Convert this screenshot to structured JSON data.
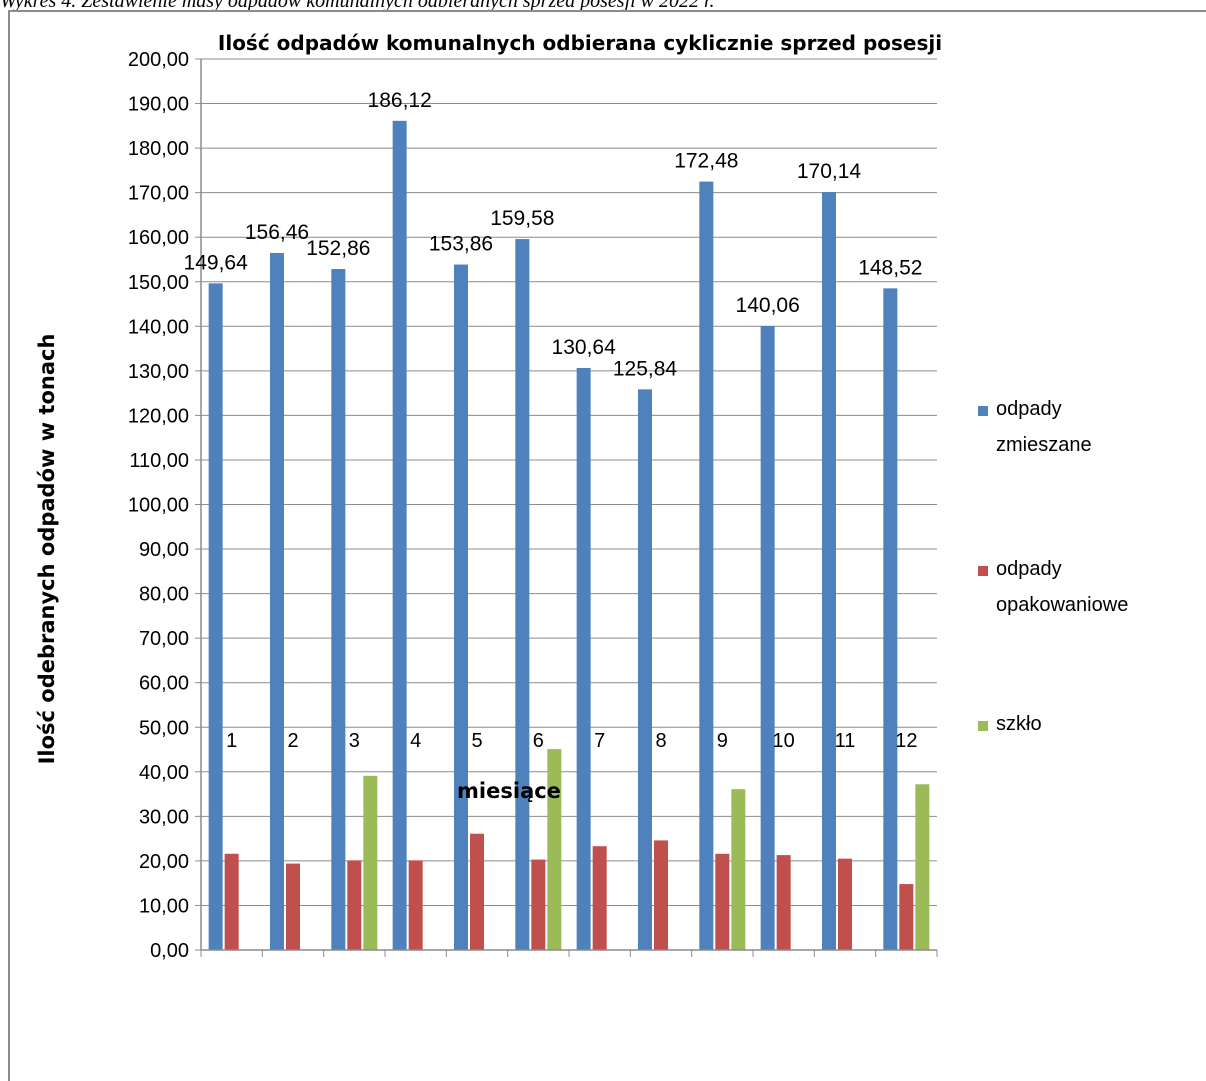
{
  "caption": "Wykres 4. Zestawienie masy odpadów komunalnych odbieranych sprzed posesji w 2022 r.",
  "chart_data": {
    "type": "bar",
    "title": "Ilość odpadów komunalnych odbierana cyklicznie sprzed posesji",
    "xlabel": "miesiące",
    "ylabel": "Ilość odebranych odpadów w tonach",
    "ylim": [
      0,
      200
    ],
    "ytick_step": 10,
    "ytick_labels": [
      "0,00",
      "10,00",
      "20,00",
      "30,00",
      "40,00",
      "50,00",
      "60,00",
      "70,00",
      "80,00",
      "90,00",
      "100,00",
      "110,00",
      "120,00",
      "130,00",
      "140,00",
      "150,00",
      "160,00",
      "170,00",
      "180,00",
      "190,00",
      "200,00"
    ],
    "grid": true,
    "legend_position": "right",
    "categories": [
      "1",
      "2",
      "3",
      "4",
      "5",
      "6",
      "7",
      "8",
      "9",
      "10",
      "11",
      "12"
    ],
    "series": [
      {
        "name": "odpady zmieszane",
        "legend_lines": [
          "odpady",
          "zmieszane"
        ],
        "color": "#4F81BD",
        "values": [
          149.64,
          156.46,
          152.86,
          186.12,
          153.86,
          159.58,
          130.64,
          125.84,
          172.48,
          140.06,
          170.14,
          148.52
        ],
        "data_labels": [
          "149,64",
          "156,46",
          "152,86",
          "186,12",
          "153,86",
          "159,58",
          "130,64",
          "125,84",
          "172,48",
          "140,06",
          "170,14",
          "148,52"
        ]
      },
      {
        "name": "odpady opakowaniowe",
        "legend_lines": [
          "odpady",
          "opakowaniowe"
        ],
        "color": "#C0504D",
        "values": [
          21.6,
          19.4,
          20.1,
          20.1,
          26.1,
          20.3,
          23.3,
          24.6,
          21.6,
          21.3,
          20.5,
          14.8
        ]
      },
      {
        "name": "szkło",
        "legend_lines": [
          "szkło"
        ],
        "color": "#9BBB59",
        "values": [
          0,
          0,
          39.1,
          0,
          0,
          45.1,
          0,
          0,
          36.1,
          0,
          0,
          37.2
        ]
      }
    ]
  }
}
